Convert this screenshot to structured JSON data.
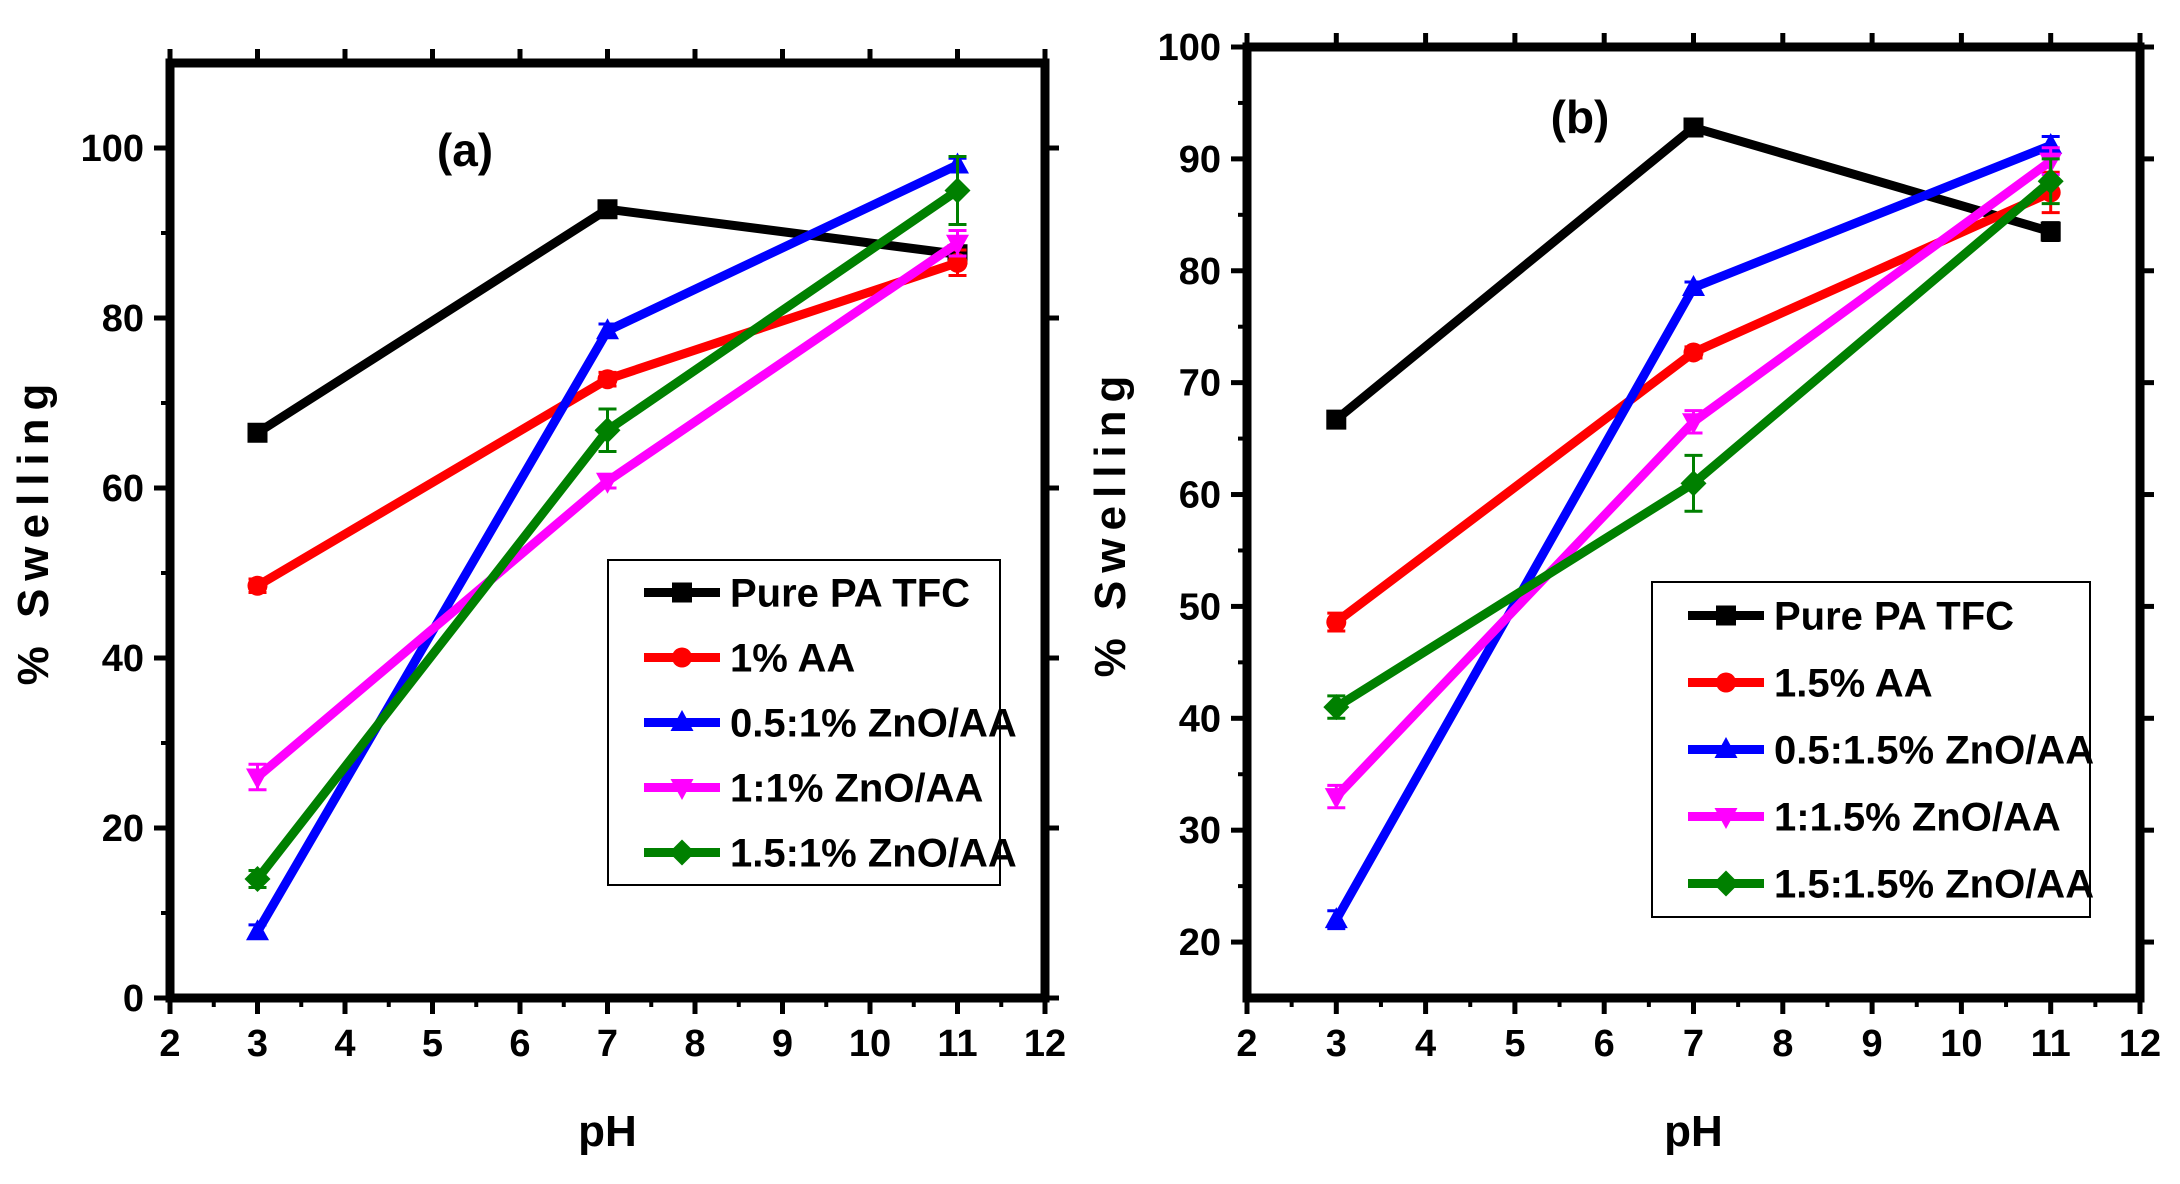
{
  "chart_data": [
    {
      "type": "line",
      "panel_label": "(a)",
      "xlabel": "pH",
      "ylabel": "% Swelling",
      "xlim": [
        2,
        12
      ],
      "ylim": [
        0,
        110
      ],
      "xticks": [
        2,
        3,
        4,
        5,
        6,
        7,
        8,
        9,
        10,
        11,
        12
      ],
      "yticks": [
        0,
        20,
        40,
        60,
        80,
        100
      ],
      "grid": false,
      "legend_position": "bottom-right",
      "series": [
        {
          "name": "Pure PA TFC",
          "color": "#000000",
          "marker": "square",
          "x": [
            3,
            7,
            11
          ],
          "values": [
            66.5,
            92.8,
            87.5
          ],
          "errors": [
            0,
            0.8,
            0.8
          ]
        },
        {
          "name": "1% AA",
          "color": "#ff0000",
          "marker": "circle",
          "x": [
            3,
            7,
            11
          ],
          "values": [
            48.5,
            72.8,
            86.5
          ],
          "errors": [
            0.8,
            0.8,
            1.5
          ]
        },
        {
          "name": "0.5:1% ZnO/AA",
          "color": "#0000ff",
          "marker": "triangle-up",
          "x": [
            3,
            7,
            11
          ],
          "values": [
            7.8,
            78.5,
            98.0
          ],
          "errors": [
            0.8,
            0.8,
            0.8
          ]
        },
        {
          "name": "1:1% ZnO/AA",
          "color": "#ff00ff",
          "marker": "triangle-down",
          "x": [
            3,
            7,
            11
          ],
          "values": [
            26.0,
            60.8,
            88.8
          ],
          "errors": [
            1.5,
            0.8,
            1.5
          ]
        },
        {
          "name": "1.5:1% ZnO/AA",
          "color": "#008000",
          "marker": "diamond",
          "x": [
            3,
            7,
            11
          ],
          "values": [
            14.0,
            66.8,
            95.0
          ],
          "errors": [
            1.0,
            2.5,
            4.0
          ]
        }
      ]
    },
    {
      "type": "line",
      "panel_label": "(b)",
      "xlabel": "pH",
      "ylabel": "% Swelling",
      "xlim": [
        2,
        12
      ],
      "ylim": [
        15,
        100
      ],
      "xticks": [
        2,
        3,
        4,
        5,
        6,
        7,
        8,
        9,
        10,
        11,
        12
      ],
      "yticks": [
        20,
        30,
        40,
        50,
        60,
        70,
        80,
        90,
        100
      ],
      "grid": false,
      "legend_position": "bottom-right",
      "series": [
        {
          "name": "Pure PA TFC",
          "color": "#000000",
          "marker": "square",
          "x": [
            3,
            7,
            11
          ],
          "values": [
            66.7,
            92.8,
            83.5
          ],
          "errors": [
            0,
            0.5,
            0.8
          ]
        },
        {
          "name": "1.5% AA",
          "color": "#ff0000",
          "marker": "circle",
          "x": [
            3,
            7,
            11
          ],
          "values": [
            48.6,
            72.7,
            87.0
          ],
          "errors": [
            0.8,
            0.5,
            1.8
          ]
        },
        {
          "name": "0.5:1.5% ZnO/AA",
          "color": "#0000ff",
          "marker": "triangle-up",
          "x": [
            3,
            7,
            11
          ],
          "values": [
            22.0,
            78.5,
            91.2
          ],
          "errors": [
            0.8,
            0.5,
            0.8
          ]
        },
        {
          "name": "1:1.5% ZnO/AA",
          "color": "#ff00ff",
          "marker": "triangle-down",
          "x": [
            3,
            7,
            11
          ],
          "values": [
            33.0,
            66.5,
            89.8
          ],
          "errors": [
            1.0,
            1.0,
            1.2
          ]
        },
        {
          "name": "1.5:1.5% ZnO/AA",
          "color": "#008000",
          "marker": "diamond",
          "x": [
            3,
            7,
            11
          ],
          "values": [
            41.0,
            61.0,
            88.0
          ],
          "errors": [
            1.0,
            2.5,
            2.0
          ]
        }
      ]
    }
  ]
}
